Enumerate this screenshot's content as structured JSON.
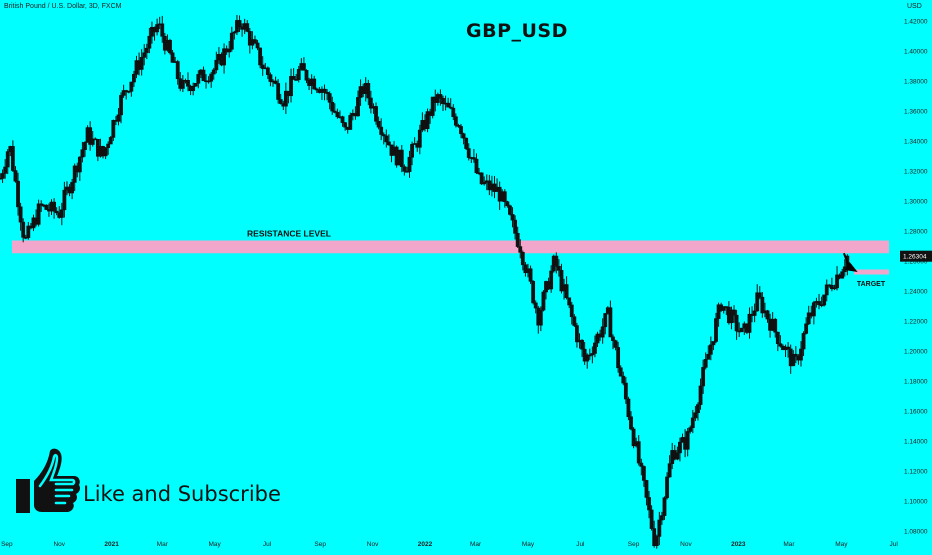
{
  "header": {
    "symbol": "British Pound / U.S. Dollar, 3D, FXCM",
    "title": "GBP_USD",
    "currency": "USD"
  },
  "annotations": {
    "resistance_label": "RESISTANCE LEVEL",
    "target_label": "TARGET",
    "resistance_zone": [
      1.265,
      1.2735
    ],
    "target_level": 1.2525,
    "arrow_from": {
      "x": "2023-05-04",
      "y": 1.265
    },
    "arrow_to": {
      "x": "2023-05-20",
      "y": 1.2525
    }
  },
  "price_badge": {
    "value": "1.26304",
    "price": 1.26304
  },
  "cta": {
    "icon": "thumbs-up-icon",
    "text": "Like and Subscribe"
  },
  "colors": {
    "background": "#00ffff",
    "bull_candle": "#111111",
    "bear_candle": "#111111",
    "resistance_zone": "#f2a6cc",
    "target_line": "#f2a6cc",
    "arrow": "#000000",
    "badge": "#111111"
  },
  "chart_data": {
    "type": "candlestick",
    "symbol": "GBPUSD",
    "timeframe": "3D",
    "x_tick_labels": [
      "Sep",
      "Nov",
      "2021",
      "Mar",
      "May",
      "Jul",
      "Sep",
      "Nov",
      "2022",
      "Mar",
      "May",
      "Jul",
      "Sep",
      "Nov",
      "2023",
      "Mar",
      "May",
      "Jul"
    ],
    "x_tick_dates": [
      "2020-09-01",
      "2020-11-01",
      "2021-01-01",
      "2021-03-01",
      "2021-05-01",
      "2021-07-01",
      "2021-09-01",
      "2021-11-01",
      "2022-01-01",
      "2022-03-01",
      "2022-05-01",
      "2022-07-01",
      "2022-09-01",
      "2022-11-01",
      "2023-01-01",
      "2023-03-01",
      "2023-05-01",
      "2023-07-01"
    ],
    "y_tick_labels": [
      "1.42000",
      "1.40000",
      "1.38000",
      "1.36000",
      "1.34000",
      "1.32000",
      "1.30000",
      "1.28000",
      "1.26000",
      "1.24000",
      "1.22000",
      "1.20000",
      "1.18000",
      "1.16000",
      "1.14000",
      "1.12000",
      "1.10000",
      "1.08000"
    ],
    "y_ticks": [
      1.42,
      1.4,
      1.38,
      1.36,
      1.34,
      1.32,
      1.3,
      1.28,
      1.26,
      1.24,
      1.22,
      1.2,
      1.18,
      1.16,
      1.14,
      1.12,
      1.1,
      1.08
    ],
    "xlim": [
      "2020-08-24",
      "2023-07-06"
    ],
    "ylim": [
      1.0725,
      1.4285
    ],
    "grid": false,
    "key_closes": [
      {
        "date": "2020-08-24",
        "price": 1.315
      },
      {
        "date": "2020-09-04",
        "price": 1.338
      },
      {
        "date": "2020-09-22",
        "price": 1.272
      },
      {
        "date": "2020-10-10",
        "price": 1.296
      },
      {
        "date": "2020-11-01",
        "price": 1.292
      },
      {
        "date": "2020-12-04",
        "price": 1.344
      },
      {
        "date": "2020-12-22",
        "price": 1.33
      },
      {
        "date": "2021-01-10",
        "price": 1.365
      },
      {
        "date": "2021-02-24",
        "price": 1.418
      },
      {
        "date": "2021-03-24",
        "price": 1.375
      },
      {
        "date": "2021-04-14",
        "price": 1.382
      },
      {
        "date": "2021-05-02",
        "price": 1.388
      },
      {
        "date": "2021-06-01",
        "price": 1.42
      },
      {
        "date": "2021-06-26",
        "price": 1.39
      },
      {
        "date": "2021-07-20",
        "price": 1.368
      },
      {
        "date": "2021-08-08",
        "price": 1.387
      },
      {
        "date": "2021-09-04",
        "price": 1.375
      },
      {
        "date": "2021-09-30",
        "price": 1.346
      },
      {
        "date": "2021-10-22",
        "price": 1.376
      },
      {
        "date": "2021-11-25",
        "price": 1.332
      },
      {
        "date": "2021-12-10",
        "price": 1.323
      },
      {
        "date": "2022-01-14",
        "price": 1.369
      },
      {
        "date": "2022-02-10",
        "price": 1.352
      },
      {
        "date": "2022-03-06",
        "price": 1.312
      },
      {
        "date": "2022-03-28",
        "price": 1.306
      },
      {
        "date": "2022-04-22",
        "price": 1.27
      },
      {
        "date": "2022-05-13",
        "price": 1.223
      },
      {
        "date": "2022-06-01",
        "price": 1.26
      },
      {
        "date": "2022-07-06",
        "price": 1.193
      },
      {
        "date": "2022-08-02",
        "price": 1.223
      },
      {
        "date": "2022-08-25",
        "price": 1.162
      },
      {
        "date": "2022-09-26",
        "price": 1.072
      },
      {
        "date": "2022-10-16",
        "price": 1.132
      },
      {
        "date": "2022-11-02",
        "price": 1.14
      },
      {
        "date": "2022-12-12",
        "price": 1.232
      },
      {
        "date": "2023-01-06",
        "price": 1.21
      },
      {
        "date": "2023-01-24",
        "price": 1.235
      },
      {
        "date": "2023-02-20",
        "price": 1.205
      },
      {
        "date": "2023-03-08",
        "price": 1.19
      },
      {
        "date": "2023-03-24",
        "price": 1.222
      },
      {
        "date": "2023-04-28",
        "price": 1.252
      },
      {
        "date": "2023-05-08",
        "price": 1.263
      }
    ]
  }
}
